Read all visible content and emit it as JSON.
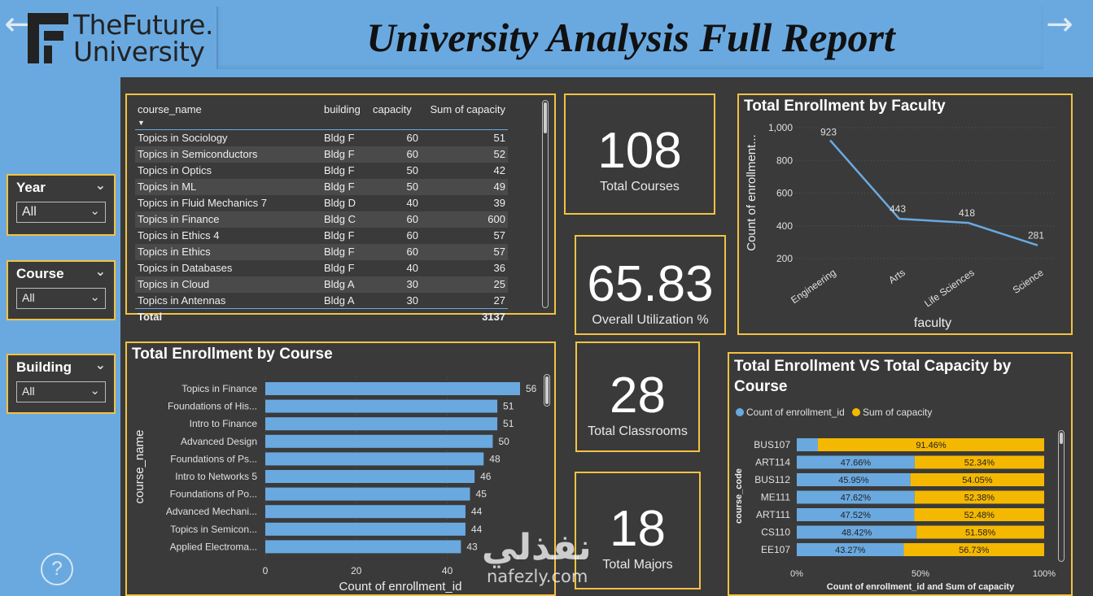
{
  "header": {
    "logo_line1": "TheFuture.",
    "logo_line2": "University",
    "title": "University Analysis Full Report"
  },
  "filters": [
    {
      "label": "Year",
      "value": "All"
    },
    {
      "label": "Course",
      "value": "All"
    },
    {
      "label": "Building",
      "value": "All"
    }
  ],
  "table": {
    "columns": [
      "course_name",
      "building",
      "capacity",
      "Sum of capacity"
    ],
    "rows": [
      [
        "Topics in Sociology",
        "Bldg F",
        "60",
        "51"
      ],
      [
        "Topics in Semiconductors",
        "Bldg F",
        "60",
        "52"
      ],
      [
        "Topics in Optics",
        "Bldg F",
        "50",
        "42"
      ],
      [
        "Topics in ML",
        "Bldg F",
        "50",
        "49"
      ],
      [
        "Topics in Fluid Mechanics 7",
        "Bldg D",
        "40",
        "39"
      ],
      [
        "Topics in Finance",
        "Bldg C",
        "60",
        "600"
      ],
      [
        "Topics in Ethics 4",
        "Bldg F",
        "60",
        "57"
      ],
      [
        "Topics in Ethics",
        "Bldg F",
        "60",
        "57"
      ],
      [
        "Topics in Databases",
        "Bldg F",
        "40",
        "36"
      ],
      [
        "Topics in Cloud",
        "Bldg A",
        "30",
        "25"
      ],
      [
        "Topics in Antennas",
        "Bldg A",
        "30",
        "27"
      ]
    ],
    "total_label": "Total",
    "total_value": "3137"
  },
  "kpis": [
    {
      "value": "108",
      "label": "Total Courses"
    },
    {
      "value": "65.83",
      "label": "Overall Utilization %"
    },
    {
      "value": "28",
      "label": "Total Classrooms"
    },
    {
      "value": "18",
      "label": "Total Majors"
    }
  ],
  "chart_data": [
    {
      "type": "line",
      "title": "Total Enrollment by Faculty",
      "xlabel": "faculty",
      "ylabel": "Count of enrollment...",
      "categories": [
        "Engineering",
        "Arts",
        "Life Sciences",
        "Science"
      ],
      "values": [
        923,
        443,
        418,
        281
      ],
      "yticks": [
        "200",
        "400",
        "600",
        "800",
        "1,000"
      ],
      "ylim": [
        200,
        1000
      ],
      "color": "#6aa9e0"
    },
    {
      "type": "bar",
      "orientation": "horizontal",
      "title": "Total Enrollment by Course",
      "xlabel": "Count of enrollment_id",
      "ylabel": "course_name",
      "categories": [
        "Topics in Finance",
        "Foundations of His...",
        "Intro to Finance",
        "Advanced Design",
        "Foundations of Ps...",
        "Intro to Networks 5",
        "Foundations of Po...",
        "Advanced Mechani...",
        "Topics in Semicon...",
        "Applied Electroma..."
      ],
      "values": [
        56,
        51,
        51,
        50,
        48,
        46,
        45,
        44,
        44,
        43
      ],
      "xticks": [
        "0",
        "20",
        "40"
      ],
      "xlim": [
        0,
        56
      ],
      "color": "#6aa9e0"
    },
    {
      "type": "bar",
      "orientation": "horizontal-stacked-100",
      "title": "Total Enrollment VS Total Capacity by Course",
      "xlabel": "Count of enrollment_id and Sum of capacity",
      "ylabel": "course_code",
      "legend": [
        "Count of enrollment_id",
        "Sum of capacity"
      ],
      "colors": [
        "#6aa9e0",
        "#f5b800"
      ],
      "categories": [
        "BUS107",
        "ART114",
        "BUS112",
        "ME111",
        "ART111",
        "CS110",
        "EE107"
      ],
      "series": [
        {
          "name": "Count of enrollment_id",
          "values": [
            8.54,
            47.66,
            45.95,
            47.62,
            47.52,
            48.42,
            43.27
          ],
          "labels": [
            "",
            "47.66%",
            "45.95%",
            "47.62%",
            "47.52%",
            "48.42%",
            "43.27%"
          ]
        },
        {
          "name": "Sum of capacity",
          "values": [
            91.46,
            52.34,
            54.05,
            52.38,
            52.48,
            51.58,
            56.73
          ],
          "labels": [
            "91.46%",
            "52.34%",
            "54.05%",
            "52.38%",
            "52.48%",
            "51.58%",
            "56.73%"
          ]
        }
      ],
      "xticks": [
        "0%",
        "50%",
        "100%"
      ]
    }
  ],
  "watermark": {
    "arabic": "نفذلي",
    "latin": "nafezly.com"
  }
}
